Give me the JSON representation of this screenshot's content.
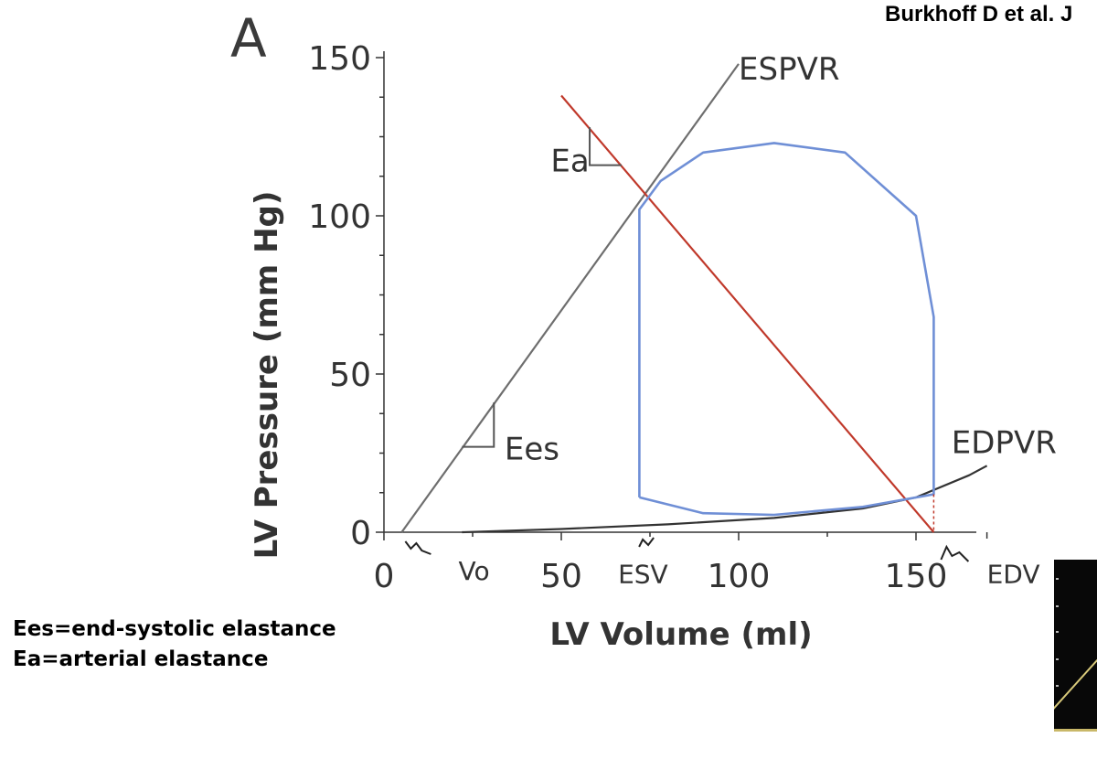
{
  "panel_label": "A",
  "citation": "Burkhoff D et al. J",
  "notes": [
    "Ees=end-systolic elastance",
    "Ea=arterial elastance"
  ],
  "chart_data": {
    "type": "line",
    "title": "",
    "xlabel": "LV Volume (ml)",
    "ylabel": "LV Pressure (mm Hg)",
    "xlim": [
      0,
      170
    ],
    "ylim": [
      0,
      150
    ],
    "x_ticks": [
      0,
      50,
      100,
      150
    ],
    "y_ticks": [
      0,
      50,
      100,
      150
    ],
    "grid": false,
    "series": [
      {
        "name": "ESPVR",
        "color": "#6e6e6e",
        "points": [
          [
            5,
            0
          ],
          [
            100,
            148
          ]
        ]
      },
      {
        "name": "EDPVR",
        "color": "#333333",
        "points": [
          [
            22,
            0
          ],
          [
            50,
            1
          ],
          [
            80,
            2.5
          ],
          [
            110,
            4.5
          ],
          [
            135,
            7.5
          ],
          [
            150,
            11
          ],
          [
            165,
            18
          ],
          [
            170,
            21
          ]
        ]
      },
      {
        "name": "Ea",
        "color": "#c0392b",
        "points": [
          [
            50,
            138
          ],
          [
            155,
            0
          ]
        ]
      },
      {
        "name": "PV loop",
        "color": "#6f8fd6",
        "points": [
          [
            72,
            11
          ],
          [
            90,
            6
          ],
          [
            110,
            5.5
          ],
          [
            135,
            8
          ],
          [
            155,
            12
          ],
          [
            155,
            68
          ],
          [
            150,
            100
          ],
          [
            130,
            120
          ],
          [
            110,
            123
          ],
          [
            90,
            120
          ],
          [
            78,
            111
          ],
          [
            72,
            102
          ],
          [
            72,
            11
          ]
        ]
      }
    ],
    "annotations": [
      {
        "label": "ESPVR",
        "x": 100,
        "y": 143
      },
      {
        "label": "EDPVR",
        "x": 160,
        "y": 25
      },
      {
        "label": "Ees",
        "x": 34,
        "y": 23
      },
      {
        "label": "Ea",
        "x": 47,
        "y": 114
      },
      {
        "label": "Vo",
        "x": 21,
        "y": -15
      },
      {
        "label": "ESV",
        "x": 66,
        "y": -16
      },
      {
        "label": "EDV",
        "x": 170,
        "y": -16
      }
    ],
    "markers": [
      {
        "name": "Vo",
        "x": 5
      },
      {
        "name": "ESV",
        "x": 74
      },
      {
        "name": "EDV",
        "x": 155
      }
    ]
  }
}
